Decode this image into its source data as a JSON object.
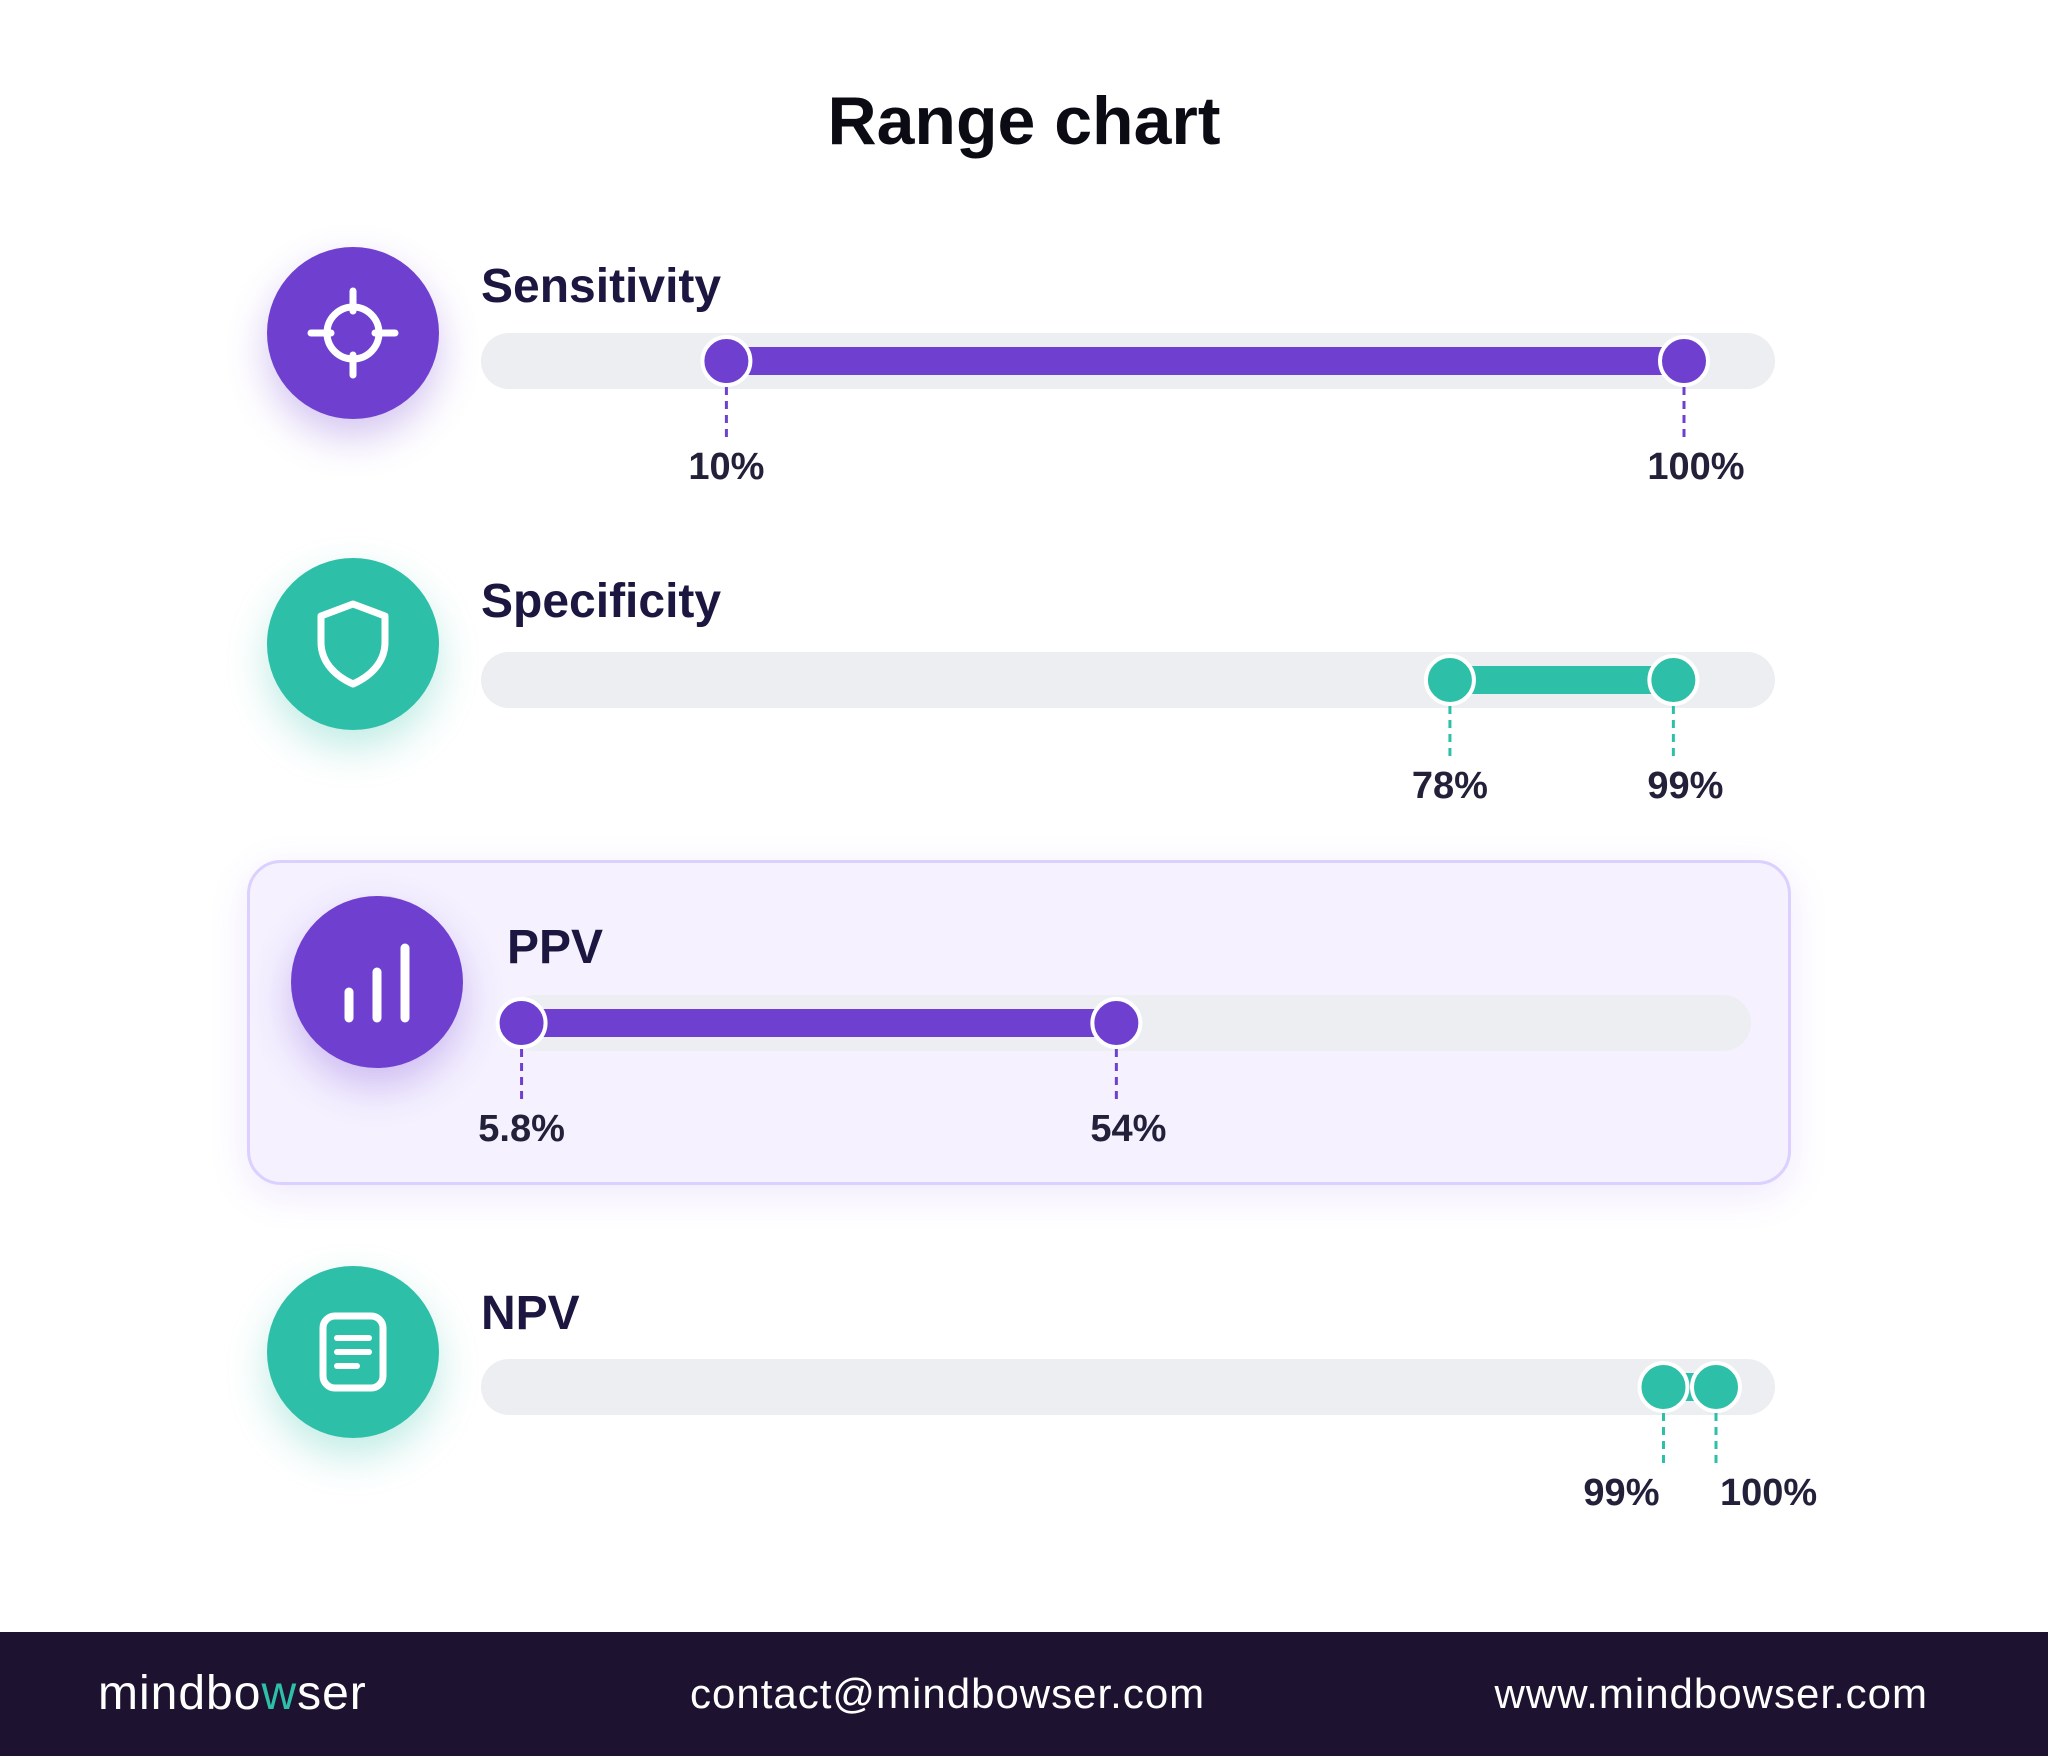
{
  "page": {
    "title": "Range chart"
  },
  "chart_data": {
    "type": "range",
    "title": "Range chart",
    "xlim": [
      0,
      100
    ],
    "unit": "%",
    "series": [
      {
        "name": "Sensitivity",
        "low": 10,
        "high": 100,
        "low_label": "10%",
        "high_label": "100%",
        "color": "#6f3fcf",
        "icon": "crosshair-icon"
      },
      {
        "name": "Specificity",
        "low": 78,
        "high": 99,
        "low_label": "78%",
        "high_label": "99%",
        "color": "#2ebfa8",
        "icon": "shield-icon"
      },
      {
        "name": "PPV",
        "low": 5.8,
        "high": 54,
        "low_label": "5.8%",
        "high_label": "54%",
        "color": "#6f3fcf",
        "icon": "bar-chart-icon",
        "highlighted": true
      },
      {
        "name": "NPV",
        "low": 99,
        "high": 100,
        "low_label": "99%",
        "high_label": "100%",
        "color": "#2ebfa8",
        "icon": "document-icon"
      }
    ]
  },
  "footer": {
    "brand_part1": "mindbo",
    "brand_accent": "w",
    "brand_part2": "ser",
    "email": "contact@mindbowser.com",
    "website": "www.mindbowser.com"
  }
}
